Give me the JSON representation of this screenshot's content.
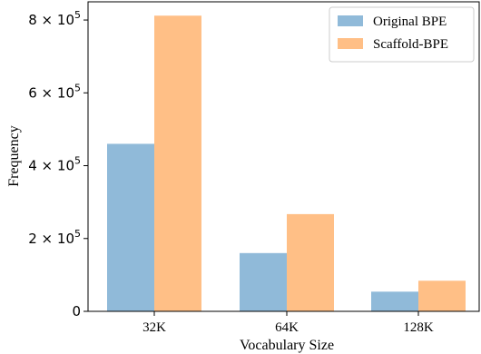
{
  "chart_data": {
    "type": "bar",
    "categories": [
      "32K",
      "64K",
      "128K"
    ],
    "series": [
      {
        "name": "Original BPE",
        "values": [
          460000,
          160000,
          54000
        ],
        "color": "#90bad9"
      },
      {
        "name": "Scaffold-BPE",
        "values": [
          812000,
          267000,
          84000
        ],
        "color": "#ffbf86"
      }
    ],
    "xlabel": "Vocabulary Size",
    "ylabel": "Frequency",
    "ylim": [
      0,
      850000
    ],
    "yticks": [
      {
        "value": 0,
        "mantissa": "0",
        "exponent": ""
      },
      {
        "value": 200000,
        "mantissa": "2 × 10",
        "exponent": "5"
      },
      {
        "value": 400000,
        "mantissa": "4 × 10",
        "exponent": "5"
      },
      {
        "value": 600000,
        "mantissa": "6 × 10",
        "exponent": "5"
      },
      {
        "value": 800000,
        "mantissa": "8 × 10",
        "exponent": "5"
      }
    ],
    "legend_position": "top-right",
    "grid": false
  }
}
